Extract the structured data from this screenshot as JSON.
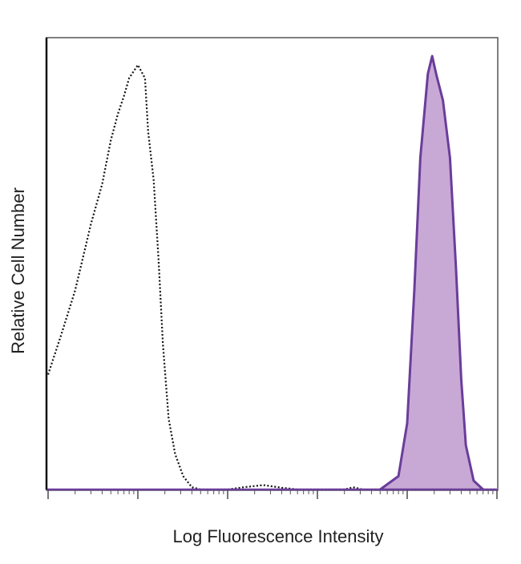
{
  "chart_data": {
    "type": "area",
    "title": "",
    "xlabel": "Log Fluorescence Intensity",
    "ylabel": "Relative Cell Number",
    "x_scale": "log",
    "xlim": [
      1,
      100000
    ],
    "ylim": [
      0,
      100
    ],
    "grid": false,
    "legend": "none",
    "series": [
      {
        "style": "dotted-outline",
        "color": "#111111",
        "points": [
          [
            1,
            26
          ],
          [
            1.4,
            35
          ],
          [
            2,
            45
          ],
          [
            3,
            60
          ],
          [
            4,
            69
          ],
          [
            5,
            79
          ],
          [
            6,
            85
          ],
          [
            7,
            89
          ],
          [
            8,
            93
          ],
          [
            10,
            96
          ],
          [
            12,
            93
          ],
          [
            13,
            81
          ],
          [
            15,
            70
          ],
          [
            17,
            52
          ],
          [
            19,
            33
          ],
          [
            22,
            16
          ],
          [
            26,
            8
          ],
          [
            32,
            3
          ],
          [
            40,
            0.5
          ],
          [
            50,
            0
          ],
          [
            100,
            0
          ],
          [
            150,
            0.5
          ],
          [
            250,
            1
          ],
          [
            400,
            0.4
          ],
          [
            600,
            0
          ],
          [
            2000,
            0
          ],
          [
            2500,
            0.5
          ],
          [
            3200,
            0
          ],
          [
            100000,
            0
          ]
        ]
      },
      {
        "style": "filled",
        "color": "#6a3d9a",
        "fill": "#c8a9d6",
        "points": [
          [
            5000,
            0
          ],
          [
            8000,
            3
          ],
          [
            10000,
            15
          ],
          [
            12000,
            45
          ],
          [
            14000,
            75
          ],
          [
            17000,
            94
          ],
          [
            19000,
            98
          ],
          [
            21000,
            94
          ],
          [
            25000,
            88
          ],
          [
            30000,
            75
          ],
          [
            35000,
            50
          ],
          [
            40000,
            25
          ],
          [
            45000,
            10
          ],
          [
            55000,
            2
          ],
          [
            70000,
            0
          ]
        ]
      }
    ]
  }
}
